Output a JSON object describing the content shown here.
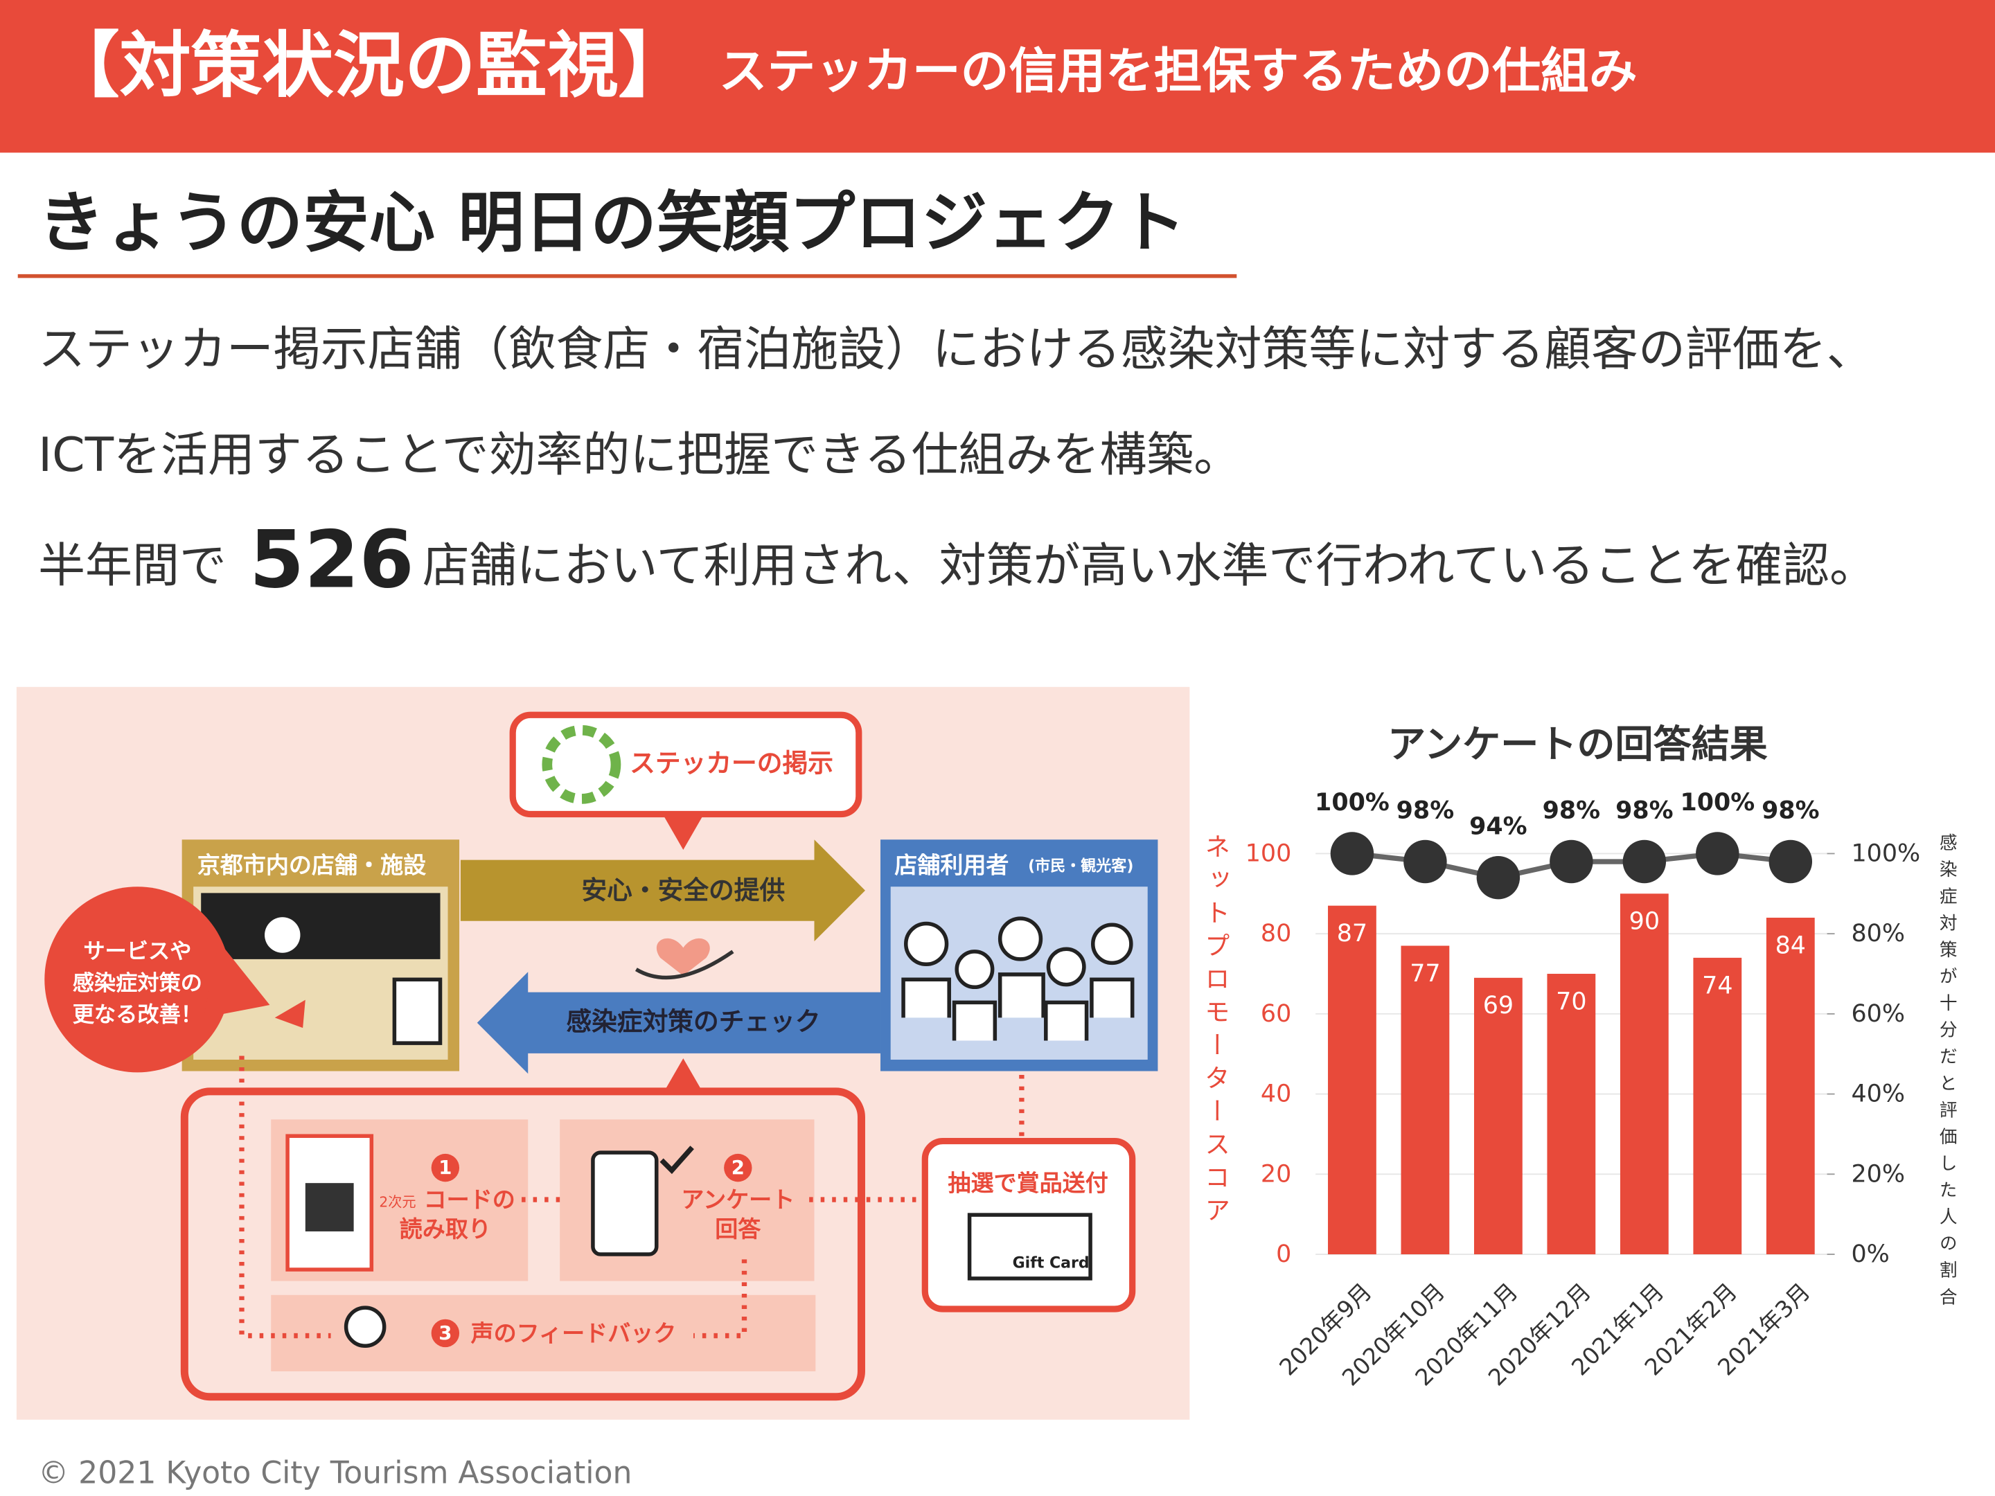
{
  "header": {
    "title": "【対策状況の監視】",
    "subtitle": "ステッカーの信用を担保するための仕組み"
  },
  "heading": "きょうの安心 明日の笑顔プロジェクト",
  "body": {
    "lines": [
      "ステッカー掲示店舗（飲食店・宿泊施設）における感染対策等に対する顧客の評価を、",
      "ICTを活用することで効率的に把握できる仕組みを構築。"
    ],
    "summary": {
      "prefix": "半年間で",
      "count": 526,
      "suffix": "店舗において利用され、対策が高い水準で行われていることを確認。"
    }
  },
  "diagram": {
    "sticker": "ステッカーの掲示",
    "store": "京都市内の店舗・施設",
    "user": "店舗利用者",
    "user_note": "(市民・観光客)",
    "provide": "安心・安全の提供",
    "check": "感染症対策のチェック",
    "improve": [
      "サービスや",
      "感染症対策の",
      "更なる改善！"
    ],
    "steps": [
      {
        "number": 1,
        "prefix": "2次元",
        "lines": [
          "コードの",
          "読み取り"
        ]
      },
      {
        "number": 2,
        "lines": [
          "アンケート",
          "回答"
        ]
      },
      {
        "number": 3,
        "lines": [
          "声のフィードバック"
        ]
      }
    ],
    "prize": "抽選で賞品送付",
    "gift_card": "Gift Card"
  },
  "footer": "© 2021 Kyoto City Tourism Association",
  "chart_data": {
    "type": "bar",
    "title": "アンケートの回答結果",
    "ylabel": "ネットプロモータースコア",
    "y2label": "感染症対策が十分だと評価した人の割合",
    "categories": [
      "2020年9月",
      "2020年10月",
      "2020年11月",
      "2020年12月",
      "2021年1月",
      "2021年2月",
      "2021年3月"
    ],
    "series": [
      {
        "type": "bar",
        "color": "#e84a3a",
        "values": [
          87,
          77,
          69,
          70,
          90,
          74,
          84
        ]
      },
      {
        "type": "line",
        "axis": "y2",
        "color": "#333333",
        "values": [
          100,
          98,
          94,
          98,
          98,
          100,
          98
        ],
        "value_labels": [
          "100%",
          "98%",
          "94%",
          "98%",
          "98%",
          "100%",
          "98%"
        ]
      }
    ],
    "ylim": [
      0,
      100
    ],
    "yticks": [
      0,
      20,
      40,
      60,
      80,
      100
    ],
    "y2lim": [
      0,
      100
    ],
    "y2ticks": [
      {
        "value": 0,
        "label": "0%"
      },
      {
        "value": 20,
        "label": "20%"
      },
      {
        "value": 40,
        "label": "40%"
      },
      {
        "value": 60,
        "label": "60%"
      },
      {
        "value": 80,
        "label": "80%"
      },
      {
        "value": 100,
        "label": "100%"
      }
    ],
    "grid": true
  }
}
